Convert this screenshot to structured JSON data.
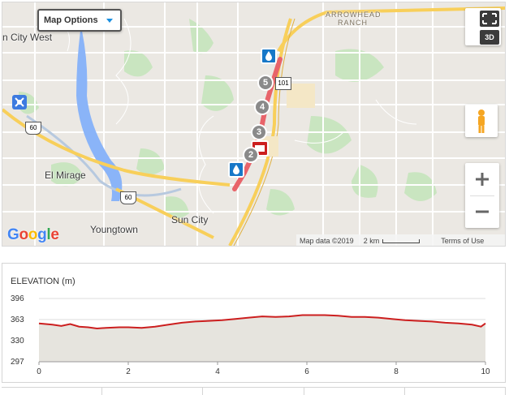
{
  "map": {
    "options_label": "Map Options",
    "btn_3d": "3D",
    "places": [
      {
        "id": "sun-city-west",
        "text": "n City West"
      },
      {
        "id": "el-mirage",
        "text": "El Mirage"
      },
      {
        "id": "youngtown",
        "text": "Youngtown"
      },
      {
        "id": "sun-city",
        "text": "Sun City"
      },
      {
        "id": "arrowhead-1",
        "text": "ARROWHEAD"
      },
      {
        "id": "arrowhead-2",
        "text": "RANCH"
      }
    ],
    "shields": [
      "60",
      "60",
      "101"
    ],
    "waypoints": [
      "5",
      "4",
      "3",
      "2"
    ],
    "google_letters": [
      {
        "ch": "G",
        "color": "#4285f4"
      },
      {
        "ch": "o",
        "color": "#ea4335"
      },
      {
        "ch": "o",
        "color": "#fbbc05"
      },
      {
        "ch": "g",
        "color": "#4285f4"
      },
      {
        "ch": "l",
        "color": "#34a853"
      },
      {
        "ch": "e",
        "color": "#ea4335"
      }
    ],
    "attribution": {
      "data": "Map data ©2019",
      "scale": "2 km",
      "terms": "Terms of Use"
    },
    "colors": {
      "route": "#e8646a",
      "marker_blue": "#1778c8",
      "marker_red": "#cc1f1f",
      "highway": "#f8cf5a",
      "water": "#8ab4f8",
      "park": "#c9e5c0"
    }
  },
  "elevation": {
    "title": "ELEVATION (m)",
    "y_ticks": [
      "396",
      "363",
      "330",
      "297"
    ],
    "x_ticks": [
      "0",
      "2",
      "4",
      "6",
      "8",
      "10"
    ]
  },
  "chart_data": {
    "type": "area",
    "title": "ELEVATION (m)",
    "xlabel": "",
    "ylabel": "ELEVATION (m)",
    "xlim": [
      0,
      10
    ],
    "ylim": [
      297,
      396
    ],
    "y_ticks": [
      396,
      363,
      330,
      297
    ],
    "x_ticks": [
      0,
      2,
      4,
      6,
      8,
      10
    ],
    "series": [
      {
        "color": "#cc1f1f",
        "x": [
          0,
          0.3,
          0.5,
          0.7,
          0.9,
          1.1,
          1.3,
          1.5,
          1.8,
          2.0,
          2.3,
          2.6,
          2.9,
          3.2,
          3.5,
          3.8,
          4.1,
          4.4,
          4.7,
          5.0,
          5.3,
          5.6,
          5.9,
          6.1,
          6.4,
          6.7,
          7.0,
          7.3,
          7.6,
          7.9,
          8.2,
          8.5,
          8.8,
          9.1,
          9.4,
          9.7,
          9.9,
          10.0
        ],
        "values": [
          357,
          355,
          353,
          356,
          352,
          351,
          349,
          350,
          351,
          351,
          350,
          352,
          355,
          358,
          360,
          361,
          362,
          364,
          366,
          368,
          367,
          368,
          370,
          370,
          370,
          369,
          367,
          367,
          366,
          364,
          362,
          361,
          360,
          358,
          357,
          355,
          352,
          357
        ]
      }
    ]
  }
}
